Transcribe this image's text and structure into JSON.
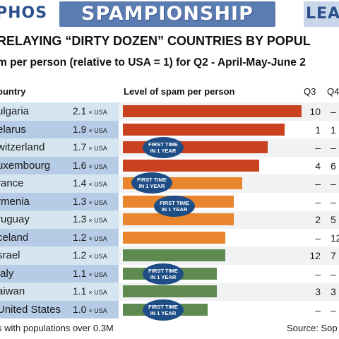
{
  "banner": {
    "left_text": "PHOS",
    "center_text": "SPAMPIONSHIP",
    "right_text": "LEAG"
  },
  "colors": {
    "red": "#c9411f",
    "orange": "#e8852d",
    "green": "#5e8a4f",
    "row_light": "#d6e6f0",
    "row_dark": "#b6cbe6",
    "badge": "#1f4e86"
  },
  "chart_data": {
    "type": "bar",
    "orientation": "horizontal",
    "title": "RELAYING “DIRTY DOZEN” COUNTRIES BY POPUL",
    "subtitle": "m per person (relative to USA = 1) for Q2 - April-May-June 2",
    "columns": {
      "country": "ountry",
      "bar": "Level of spam per person",
      "q3": "Q3",
      "q4": "Q4"
    },
    "unit_suffix": "× USA",
    "xlim": [
      0,
      2.1
    ],
    "badge_text": [
      "FIRST TIME",
      "IN 1 YEAR"
    ],
    "categories": [
      "ulgaria",
      "elarus",
      "witzerland",
      "uxembourg",
      "rance",
      "rmenia",
      "ruguay",
      "celand",
      "srael",
      "taly",
      "aiwan",
      "United States"
    ],
    "values": [
      2.1,
      1.9,
      1.7,
      1.6,
      1.4,
      1.3,
      1.3,
      1.2,
      1.2,
      1.1,
      1.1,
      1.0
    ],
    "value_labels": [
      "2.1",
      "1.9",
      "1.7",
      "1.6",
      "1.4",
      "1.3",
      "1.3",
      "1.2",
      "1.2",
      "1.1",
      "1.1",
      "1.0"
    ],
    "bar_color": [
      "red",
      "red",
      "red",
      "red",
      "orange",
      "orange",
      "orange",
      "orange",
      "green",
      "green",
      "green",
      "green"
    ],
    "first_time": [
      false,
      false,
      true,
      false,
      true,
      true,
      false,
      false,
      false,
      true,
      false,
      true
    ],
    "q3": [
      "10",
      "1",
      "–",
      "4",
      "–",
      "–",
      "2",
      "–",
      "12",
      "–",
      "3",
      "–"
    ],
    "q4": [
      "–",
      "1",
      "–",
      "6",
      "–",
      "–",
      "5",
      "12",
      "7",
      "–",
      "3",
      "–"
    ]
  },
  "footer": {
    "note": "s with populations over 0.3M",
    "source": "Source: Sop"
  }
}
